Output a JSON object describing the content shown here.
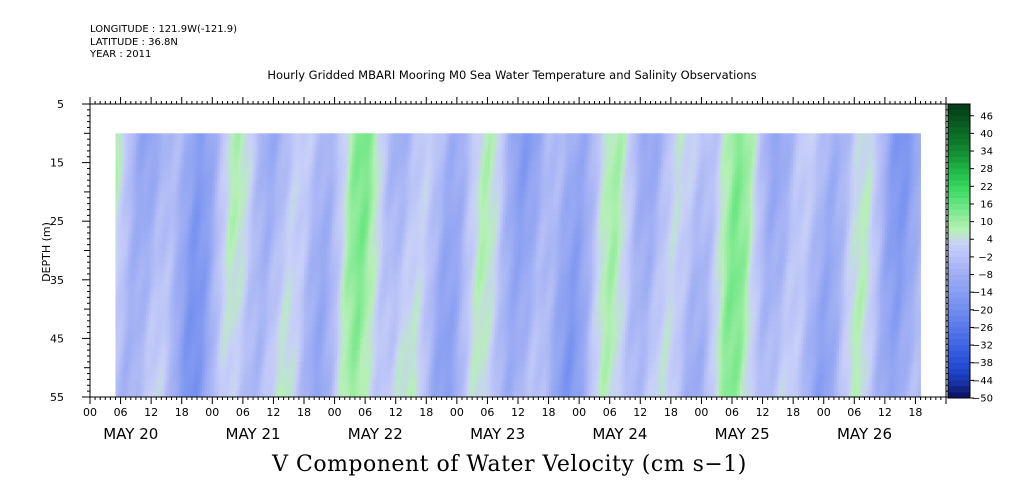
{
  "header": {
    "longitude": "LONGITUDE : 121.9W(-121.9)",
    "latitude": "LATITUDE : 36.8N",
    "year": "YEAR : 2011",
    "title": "Hourly Gridded MBARI Mooring M0 Sea Water Temperature and Salinity Observations",
    "variable_title": "V Component of Water Velocity (cm s−1)"
  },
  "chart_data": {
    "type": "heatmap",
    "title": "Hourly Gridded MBARI Mooring M0 Sea Water Temperature and Salinity Observations",
    "xlabel": "",
    "ylabel": "DEPTH (m)",
    "x_start_hours": 0,
    "x_end_hours": 168,
    "data_start_hours": 5,
    "data_end_hours": 163,
    "x_day_labels": [
      "MAY 20",
      "MAY 21",
      "MAY 22",
      "MAY 23",
      "MAY 24",
      "MAY 25",
      "MAY 26"
    ],
    "x_hour_labels": [
      "00",
      "06",
      "12",
      "18"
    ],
    "ylim": [
      55,
      5
    ],
    "y_ticks": [
      5,
      15,
      25,
      35,
      45,
      55
    ],
    "data_top_depth": 10,
    "colorbar": {
      "labels": [
        46,
        40,
        34,
        28,
        22,
        16,
        10,
        4,
        -2,
        -8,
        -14,
        -20,
        -26,
        -32,
        -38,
        -44,
        -50
      ],
      "min": -50,
      "max": 50,
      "colors_low_to_high": [
        "#0c0c5a",
        "#1630a0",
        "#2046cc",
        "#3056dc",
        "#4468e4",
        "#5878ea",
        "#6c88ee",
        "#7e96f0",
        "#90a4f2",
        "#a2b0f4",
        "#b6c0f6",
        "#c8d0f8",
        "#b6f0b6",
        "#8ceb98",
        "#5ee47a",
        "#3ad860",
        "#22c04a",
        "#179e3a",
        "#10802e",
        "#0c6a26",
        "#07501c",
        "#043c14"
      ]
    },
    "grid": false,
    "legend": "colorbar-right"
  }
}
